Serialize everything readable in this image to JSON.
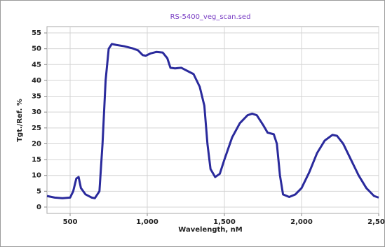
{
  "chart_data": {
    "type": "line",
    "title": "RS-5400_veg_scan.sed",
    "x_label": "Wavelength, nM",
    "y_label": "Tgt./Ref. %",
    "x": [
      350,
      400,
      450,
      500,
      520,
      540,
      555,
      570,
      600,
      640,
      660,
      690,
      710,
      730,
      750,
      770,
      800,
      850,
      900,
      940,
      970,
      990,
      1020,
      1060,
      1100,
      1130,
      1150,
      1180,
      1220,
      1260,
      1300,
      1340,
      1370,
      1390,
      1410,
      1440,
      1470,
      1500,
      1550,
      1600,
      1650,
      1680,
      1710,
      1750,
      1780,
      1820,
      1840,
      1860,
      1880,
      1920,
      1960,
      2000,
      2050,
      2100,
      2150,
      2200,
      2230,
      2270,
      2320,
      2370,
      2420,
      2470,
      2500
    ],
    "series": [
      {
        "color": "#2a2a9c",
        "values": [
          3.5,
          3,
          2.8,
          3,
          5,
          9,
          9.5,
          6,
          4,
          3,
          2.8,
          5,
          20,
          40,
          50,
          51.5,
          51.2,
          50.8,
          50.2,
          49.5,
          48,
          47.8,
          48.5,
          49,
          48.8,
          47,
          44,
          43.8,
          44,
          43,
          42,
          38,
          32,
          20,
          12,
          9.5,
          10.5,
          15,
          22,
          26.5,
          29,
          29.5,
          29,
          26,
          23.5,
          23,
          20,
          10,
          4,
          3.2,
          4,
          6,
          11,
          17,
          21,
          22.8,
          22.5,
          20,
          15,
          10,
          6,
          3.5,
          3
        ]
      }
    ],
    "xlim": [
      350,
      2500
    ],
    "ylim": [
      -2,
      57
    ],
    "xticks": [
      500,
      {
        "value": 1000,
        "label": "1,000"
      },
      {
        "value": 1500,
        "label": "1,500"
      },
      {
        "value": 2000,
        "label": "2,000"
      },
      {
        "value": 2500,
        "label": "2,500"
      }
    ],
    "yticks": [
      0,
      5,
      10,
      15,
      20,
      25,
      30,
      35,
      40,
      45,
      50,
      55
    ],
    "grid": true
  }
}
